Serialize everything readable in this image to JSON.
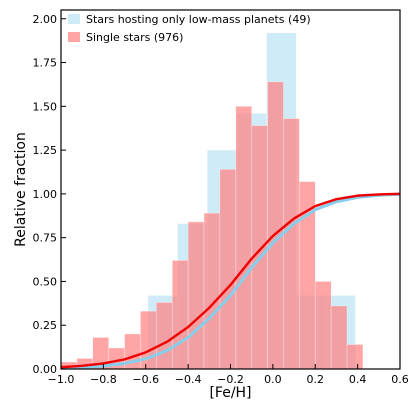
{
  "chart_data": {
    "type": "bar",
    "xlabel": "[Fe/H]",
    "ylabel": "Relative fraction",
    "xlim": [
      -1.0,
      0.6
    ],
    "ylim": [
      0.0,
      2.05
    ],
    "grid": false,
    "legend_placement": "top-left",
    "x_ticks": [
      "−1.0",
      "−0.8",
      "−0.6",
      "−0.4",
      "−0.2",
      "0.0",
      "0.2",
      "0.4",
      "0.6"
    ],
    "x_tick_values": [
      -1.0,
      -0.8,
      -0.6,
      -0.4,
      -0.2,
      0.0,
      0.2,
      0.4,
      0.6
    ],
    "y_ticks": [
      "0.00",
      "0.25",
      "0.50",
      "0.75",
      "1.00",
      "1.25",
      "1.50",
      "1.75",
      "2.00"
    ],
    "y_tick_values": [
      0.0,
      0.25,
      0.5,
      0.75,
      1.0,
      1.25,
      1.5,
      1.75,
      2.0
    ],
    "series": [
      {
        "name": "Stars hosting only low-mass planets (49)",
        "kind": "histogram",
        "color": "#87ceeb",
        "bins": [
          {
            "x0": -0.73,
            "x1": -0.59,
            "y": 0.0
          },
          {
            "x0": -0.59,
            "x1": -0.45,
            "y": 0.42
          },
          {
            "x0": -0.45,
            "x1": -0.31,
            "y": 0.83
          },
          {
            "x0": -0.31,
            "x1": -0.17,
            "y": 1.25
          },
          {
            "x0": -0.17,
            "x1": -0.03,
            "y": 1.46
          },
          {
            "x0": -0.03,
            "x1": 0.11,
            "y": 1.92
          },
          {
            "x0": 0.11,
            "x1": 0.25,
            "y": 0.42
          },
          {
            "x0": 0.25,
            "x1": 0.39,
            "y": 0.42
          }
        ]
      },
      {
        "name": "Single stars (976)",
        "kind": "histogram",
        "color": "#ff7f7f",
        "bins": [
          {
            "x0": -1.0,
            "x1": -0.925,
            "y": 0.04
          },
          {
            "x0": -0.925,
            "x1": -0.85,
            "y": 0.06
          },
          {
            "x0": -0.85,
            "x1": -0.775,
            "y": 0.18
          },
          {
            "x0": -0.775,
            "x1": -0.7,
            "y": 0.12
          },
          {
            "x0": -0.7,
            "x1": -0.625,
            "y": 0.2
          },
          {
            "x0": -0.625,
            "x1": -0.55,
            "y": 0.33
          },
          {
            "x0": -0.55,
            "x1": -0.475,
            "y": 0.38
          },
          {
            "x0": -0.475,
            "x1": -0.4,
            "y": 0.62
          },
          {
            "x0": -0.4,
            "x1": -0.325,
            "y": 0.84
          },
          {
            "x0": -0.325,
            "x1": -0.25,
            "y": 0.89
          },
          {
            "x0": -0.25,
            "x1": -0.175,
            "y": 1.14
          },
          {
            "x0": -0.175,
            "x1": -0.1,
            "y": 1.5
          },
          {
            "x0": -0.1,
            "x1": -0.025,
            "y": 1.39
          },
          {
            "x0": -0.025,
            "x1": 0.05,
            "y": 1.64
          },
          {
            "x0": 0.05,
            "x1": 0.125,
            "y": 1.43
          },
          {
            "x0": 0.125,
            "x1": 0.2,
            "y": 1.07
          },
          {
            "x0": 0.2,
            "x1": 0.275,
            "y": 0.5
          },
          {
            "x0": 0.275,
            "x1": 0.35,
            "y": 0.36
          },
          {
            "x0": 0.35,
            "x1": 0.425,
            "y": 0.14
          },
          {
            "x0": 0.425,
            "x1": 0.5,
            "y": 0.0
          }
        ]
      },
      {
        "kind": "line",
        "color": "#87ceeb",
        "points": [
          [
            -1.0,
            0.005
          ],
          [
            -0.9,
            0.009
          ],
          [
            -0.8,
            0.017
          ],
          [
            -0.7,
            0.032
          ],
          [
            -0.6,
            0.058
          ],
          [
            -0.5,
            0.105
          ],
          [
            -0.4,
            0.18
          ],
          [
            -0.3,
            0.29
          ],
          [
            -0.2,
            0.42
          ],
          [
            -0.1,
            0.58
          ],
          [
            0.0,
            0.72
          ],
          [
            0.1,
            0.83
          ],
          [
            0.2,
            0.91
          ],
          [
            0.3,
            0.955
          ],
          [
            0.4,
            0.98
          ],
          [
            0.5,
            0.992
          ],
          [
            0.6,
            0.998
          ]
        ]
      },
      {
        "kind": "line",
        "color": "#ee0000",
        "points": [
          [
            -1.0,
            0.01
          ],
          [
            -0.9,
            0.018
          ],
          [
            -0.8,
            0.032
          ],
          [
            -0.7,
            0.055
          ],
          [
            -0.6,
            0.095
          ],
          [
            -0.5,
            0.155
          ],
          [
            -0.4,
            0.24
          ],
          [
            -0.3,
            0.35
          ],
          [
            -0.2,
            0.48
          ],
          [
            -0.1,
            0.63
          ],
          [
            0.0,
            0.76
          ],
          [
            0.1,
            0.86
          ],
          [
            0.2,
            0.93
          ],
          [
            0.3,
            0.97
          ],
          [
            0.4,
            0.99
          ],
          [
            0.5,
            0.997
          ],
          [
            0.6,
            1.0
          ]
        ]
      }
    ],
    "legend": [
      {
        "label": "Stars hosting only low-mass planets (49)",
        "color": "#87ceeb",
        "opacity": 0.4
      },
      {
        "label": "Single stars (976)",
        "color": "#ff7f7f",
        "opacity": 0.7
      }
    ]
  }
}
